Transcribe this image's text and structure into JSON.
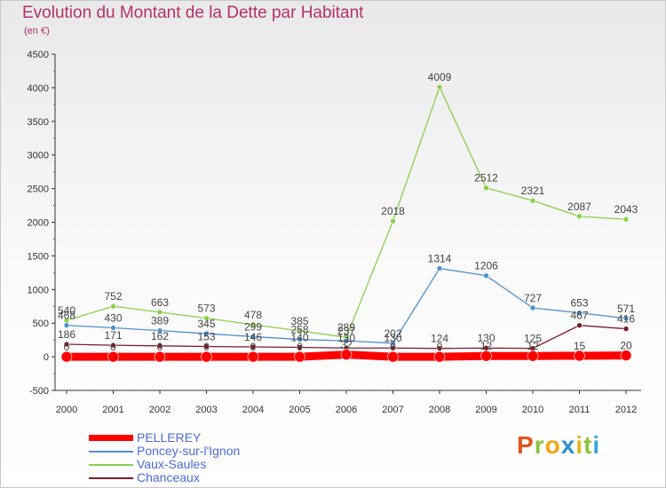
{
  "chart_data": {
    "type": "line",
    "title": "Evolution du Montant de la Dette par Habitant",
    "subtitle": "(en €)",
    "x": [
      "2000",
      "2001",
      "2002",
      "2003",
      "2004",
      "2005",
      "2006",
      "2007",
      "2008",
      "2009",
      "2010",
      "2011",
      "2012"
    ],
    "ylim": [
      -500,
      4500
    ],
    "yticks": [
      -500,
      0,
      500,
      1000,
      1500,
      2000,
      2500,
      3000,
      3500,
      4000,
      4500
    ],
    "grid": false,
    "legend_position": "bottom-left",
    "series": [
      {
        "name": "PELLEREY",
        "color": "#ff0000",
        "values": [
          0,
          0,
          0,
          0,
          0,
          0,
          32,
          0,
          0,
          12,
          12,
          15,
          20
        ],
        "labels": [
          "0",
          "0",
          "0",
          "0",
          "0",
          "0",
          "32",
          "0",
          "0",
          "12",
          "12",
          "15",
          "20"
        ]
      },
      {
        "name": "Poncey-sur-l'Ignon",
        "color": "#4f90cc",
        "values": [
          468,
          430,
          389,
          345,
          299,
          258,
          237,
          202,
          1314,
          1206,
          727,
          653,
          571
        ],
        "labels": [
          "468",
          "430",
          "389",
          "345",
          "299",
          "258",
          "237",
          "202",
          "1314",
          "1206",
          "727",
          "653",
          "571"
        ]
      },
      {
        "name": "Vaux-Saules",
        "color": "#8ad04c",
        "values": [
          540,
          752,
          663,
          573,
          478,
          385,
          289,
          2018,
          4009,
          2512,
          2321,
          2087,
          2043
        ],
        "labels": [
          "540",
          "752",
          "663",
          "573",
          "478",
          "385",
          "289",
          "2018",
          "4009",
          "2512",
          "2321",
          "2087",
          "2043"
        ]
      },
      {
        "name": "Chanceaux",
        "color": "#7a1f28",
        "values": [
          186,
          171,
          162,
          153,
          146,
          140,
          130,
          130,
          124,
          130,
          125,
          467,
          416
        ],
        "labels": [
          "186",
          "171",
          "162",
          "153",
          "146",
          "140",
          "130",
          "130",
          "124",
          "130",
          "125",
          "467",
          "416"
        ]
      }
    ]
  },
  "logo": {
    "letters": [
      "P",
      "r",
      "o",
      "x",
      "i",
      "t",
      "i"
    ],
    "colors": [
      "#e2551a",
      "#8ac43d",
      "#f2a516",
      "#2f8fd3",
      "#e2b41a",
      "#8ac43d",
      "#3aa7dd"
    ]
  }
}
